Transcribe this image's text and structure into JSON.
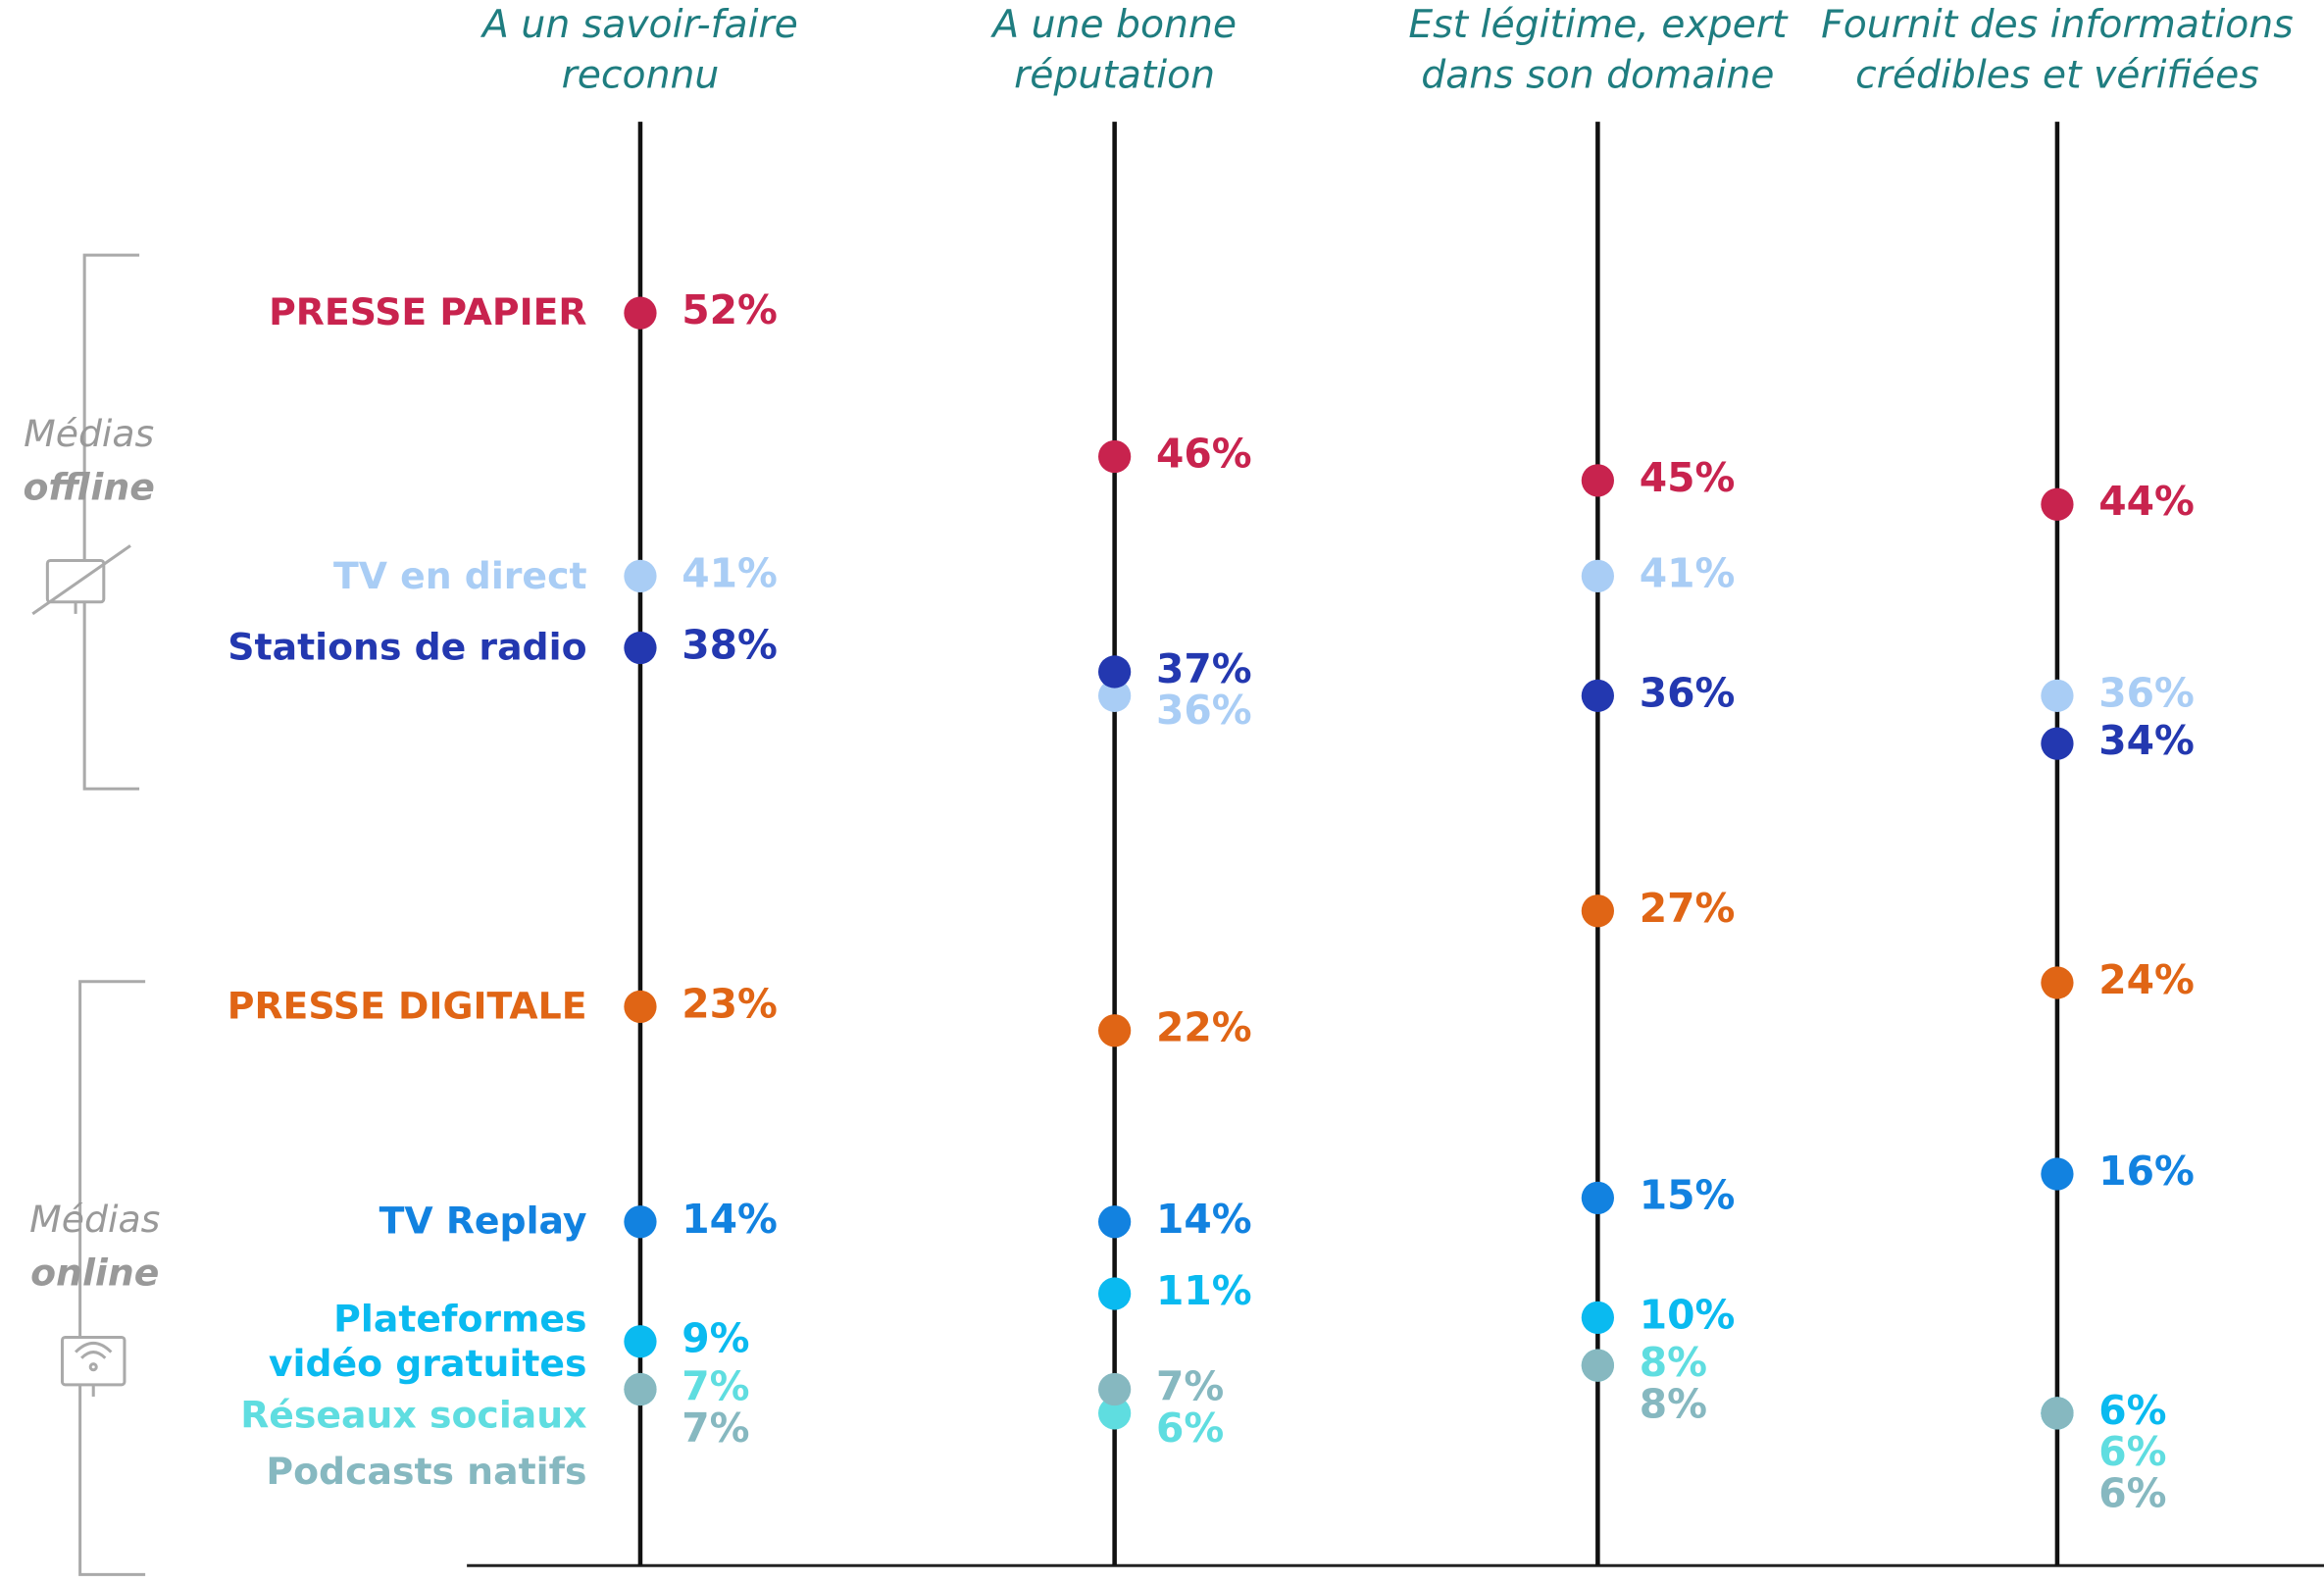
{
  "chart_data": {
    "type": "dot",
    "categories": [
      "A un savoir-faire\nreconnu",
      "A une bonne\nréputation",
      "Est légitime, expert\ndans son domaine",
      "Fournit des informations\ncrédibles et vérifiées"
    ],
    "ylim": [
      0,
      60
    ],
    "groups": [
      {
        "label": "Médias",
        "emphasis": "offline"
      },
      {
        "label": "Médias",
        "emphasis": "online"
      }
    ],
    "series": [
      {
        "name": "PRESSE PAPIER",
        "color": "#c8234e",
        "values": [
          52,
          46,
          45,
          44
        ],
        "value_labels": [
          "52%",
          "46%",
          "45%",
          "44%"
        ]
      },
      {
        "name": "TV en direct",
        "color": "#a9cdf5",
        "values": [
          41,
          36,
          41,
          36
        ],
        "value_labels": [
          "41%",
          "36%",
          "41%",
          "36%"
        ]
      },
      {
        "name": "Stations de radio",
        "color": "#2338b0",
        "values": [
          38,
          37,
          36,
          34
        ],
        "value_labels": [
          "38%",
          "37%",
          "36%",
          "34%"
        ]
      },
      {
        "name": "PRESSE DIGITALE",
        "color": "#e06515",
        "values": [
          23,
          22,
          27,
          24
        ],
        "value_labels": [
          "23%",
          "22%",
          "27%",
          "24%"
        ]
      },
      {
        "name": "TV Replay",
        "color": "#1282e0",
        "values": [
          14,
          14,
          15,
          16
        ],
        "value_labels": [
          "14%",
          "14%",
          "15%",
          "16%"
        ]
      },
      {
        "name": "Plateformes\nvidéo gratuites",
        "color": "#0abaf0",
        "values": [
          9,
          11,
          10,
          6
        ],
        "value_labels": [
          "9%",
          "11%",
          "10%",
          "6%"
        ]
      },
      {
        "name": "Réseaux sociaux",
        "color": "#5fdde0",
        "values": [
          7,
          6,
          8,
          6
        ],
        "value_labels": [
          "7%",
          "6%",
          "8%",
          "6%"
        ]
      },
      {
        "name": "Podcasts natifs",
        "color": "#86b8c0",
        "values": [
          7,
          7,
          8,
          6
        ],
        "value_labels": [
          "7%",
          "7%",
          "8%",
          "6%"
        ]
      }
    ]
  }
}
